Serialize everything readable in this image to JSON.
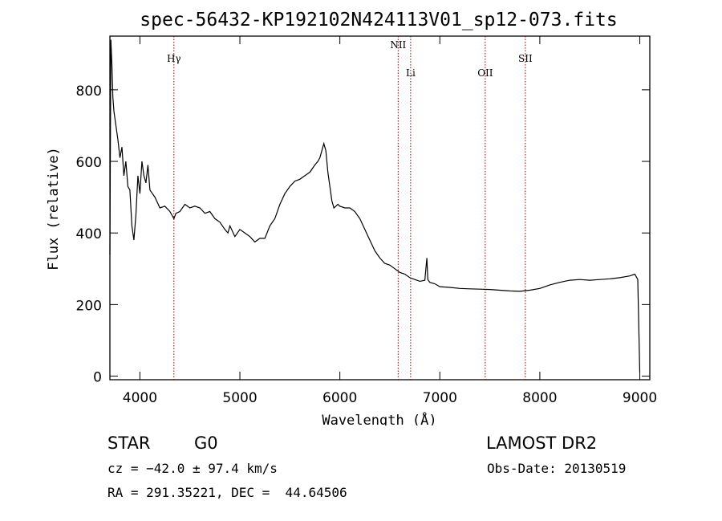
{
  "chart_data": {
    "type": "line",
    "title": "spec-56432-KP192102N424113V01_sp12-073.fits",
    "xlabel": "Wavelength (Å)",
    "ylabel": "Flux (relative)",
    "xlim": [
      3700,
      9100
    ],
    "ylim": [
      -10,
      950
    ],
    "xticks": [
      4000,
      5000,
      6000,
      7000,
      8000,
      9000
    ],
    "yticks": [
      0,
      200,
      400,
      600,
      800
    ],
    "grid": false,
    "series": [
      {
        "color": "#000000",
        "x": [
          3700,
          3710,
          3720,
          3730,
          3740,
          3760,
          3780,
          3800,
          3820,
          3840,
          3860,
          3880,
          3900,
          3920,
          3940,
          3960,
          3980,
          4000,
          4020,
          4040,
          4060,
          4080,
          4100,
          4150,
          4200,
          4250,
          4300,
          4340,
          4360,
          4400,
          4450,
          4500,
          4550,
          4600,
          4650,
          4700,
          4750,
          4800,
          4850,
          4880,
          4900,
          4950,
          5000,
          5050,
          5100,
          5150,
          5200,
          5250,
          5300,
          5350,
          5400,
          5450,
          5500,
          5550,
          5600,
          5650,
          5700,
          5750,
          5780,
          5800,
          5820,
          5840,
          5860,
          5880,
          5900,
          5920,
          5940,
          5960,
          5980,
          6000,
          6050,
          6100,
          6150,
          6200,
          6250,
          6300,
          6350,
          6400,
          6450,
          6500,
          6550,
          6600,
          6650,
          6700,
          6750,
          6800,
          6850,
          6870,
          6880,
          6900,
          6950,
          7000,
          7100,
          7200,
          7300,
          7400,
          7500,
          7600,
          7700,
          7800,
          7900,
          8000,
          8100,
          8200,
          8300,
          8400,
          8500,
          8600,
          8700,
          8800,
          8900,
          8950,
          8980,
          9000
        ],
        "y": [
          340,
          940,
          870,
          780,
          740,
          700,
          660,
          610,
          640,
          560,
          600,
          530,
          520,
          420,
          380,
          450,
          560,
          510,
          600,
          560,
          540,
          590,
          520,
          500,
          470,
          475,
          460,
          440,
          455,
          460,
          480,
          470,
          475,
          470,
          455,
          460,
          440,
          430,
          410,
          400,
          420,
          390,
          410,
          400,
          390,
          375,
          385,
          385,
          420,
          440,
          480,
          510,
          530,
          545,
          550,
          560,
          570,
          590,
          600,
          610,
          630,
          650,
          630,
          570,
          530,
          490,
          470,
          475,
          480,
          475,
          470,
          470,
          460,
          440,
          410,
          380,
          350,
          330,
          315,
          310,
          300,
          290,
          285,
          275,
          270,
          265,
          268,
          330,
          270,
          262,
          258,
          250,
          248,
          245,
          244,
          243,
          242,
          240,
          238,
          237,
          240,
          245,
          255,
          262,
          268,
          270,
          268,
          270,
          272,
          275,
          280,
          285,
          270,
          10
        ]
      }
    ],
    "vlines": [
      {
        "label": "Hγ",
        "x": 4340
      },
      {
        "label": "NII",
        "x": 6583
      },
      {
        "label": "Li",
        "x": 6708
      },
      {
        "label": "OII",
        "x": 7454
      },
      {
        "label": "SII",
        "x": 7855
      }
    ]
  },
  "info": {
    "class": "STAR",
    "subclass": "G0",
    "survey": "LAMOST DR2",
    "cz": "cz = −42.0 ± 97.4 km/s",
    "obs_date": "Obs-Date: 20130519",
    "radec": "RA = 291.35221, DEC =  44.64506"
  },
  "colors": {
    "spectrum": "#000000",
    "lines": "#8b0000"
  }
}
